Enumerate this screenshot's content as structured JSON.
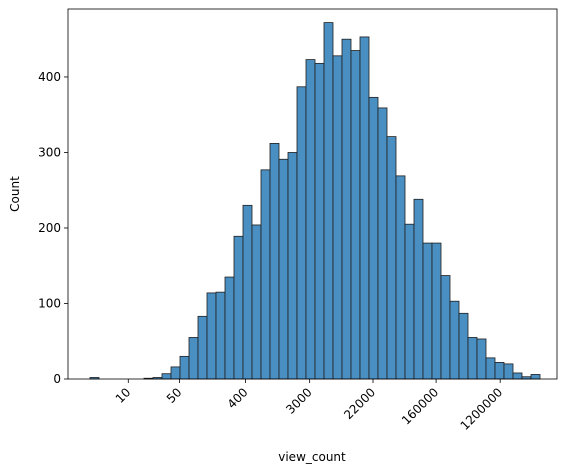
{
  "chart_data": {
    "type": "bar",
    "title": "",
    "xlabel": "view_count",
    "ylabel": "Count",
    "x_scale": "log",
    "grid": false,
    "legend": "none",
    "ylim": [
      0,
      490
    ],
    "y_ticks": [
      0,
      100,
      200,
      300,
      400
    ],
    "x_ticks": [
      10,
      50,
      400,
      3000,
      22000,
      160000,
      1200000
    ],
    "x_tick_labels": [
      "10",
      "50",
      "400",
      "3000",
      "22000",
      "160000",
      "1200000"
    ],
    "x_tick_rotation": -45,
    "bar_color": "#4a8fc1",
    "bins": {
      "first_edge": 3.0,
      "last_edge": 4200000,
      "values": [
        2,
        0,
        0,
        0,
        0,
        0,
        1,
        2,
        7,
        16,
        30,
        55,
        83,
        114,
        115,
        135,
        189,
        230,
        204,
        277,
        312,
        291,
        300,
        387,
        423,
        418,
        472,
        428,
        450,
        435,
        453,
        373,
        359,
        321,
        269,
        205,
        238,
        180,
        180,
        137,
        103,
        87,
        55,
        53,
        28,
        22,
        20,
        8,
        3,
        6
      ]
    }
  }
}
